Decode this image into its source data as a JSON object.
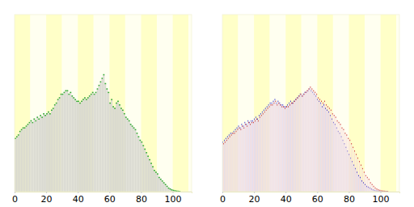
{
  "chart_data": [
    {
      "type": "bar",
      "x": [
        0,
        1,
        2,
        3,
        4,
        5,
        6,
        7,
        8,
        9,
        10,
        11,
        12,
        13,
        14,
        15,
        16,
        17,
        18,
        19,
        20,
        21,
        22,
        23,
        24,
        25,
        26,
        27,
        28,
        29,
        30,
        31,
        32,
        33,
        34,
        35,
        36,
        37,
        38,
        39,
        40,
        41,
        42,
        43,
        44,
        45,
        46,
        47,
        48,
        49,
        50,
        51,
        52,
        53,
        54,
        55,
        56,
        57,
        58,
        59,
        60,
        61,
        62,
        63,
        64,
        65,
        66,
        67,
        68,
        69,
        70,
        71,
        72,
        73,
        74,
        75,
        76,
        77,
        78,
        79,
        80,
        81,
        82,
        83,
        84,
        85,
        86,
        87,
        88,
        89,
        90,
        91,
        92,
        93,
        94,
        95,
        96,
        97,
        98,
        99,
        100,
        101,
        102,
        103,
        104
      ],
      "series": [
        {
          "color": "#33aa33",
          "values": [
            30,
            31,
            32,
            34,
            35,
            36,
            36,
            37,
            38,
            39,
            40,
            39,
            41,
            40,
            42,
            41,
            43,
            42,
            44,
            43,
            44,
            45,
            44,
            46,
            47,
            49,
            50,
            52,
            53,
            55,
            55,
            56,
            57,
            57,
            55,
            56,
            54,
            53,
            52,
            51,
            51,
            50,
            51,
            52,
            53,
            52,
            53,
            54,
            55,
            56,
            55,
            56,
            58,
            60,
            62,
            64,
            66,
            61,
            58,
            56,
            50,
            52,
            48,
            47,
            50,
            51,
            49,
            47,
            46,
            44,
            42,
            41,
            40,
            38,
            37,
            36,
            35,
            33,
            31,
            29,
            28,
            26,
            24,
            22,
            20,
            18,
            16,
            14,
            12,
            11,
            10,
            8,
            7,
            6,
            5,
            4,
            3,
            2,
            1.5,
            1,
            0.7,
            0.5,
            0.3,
            0.2,
            0.1
          ]
        }
      ],
      "xlim": [
        0,
        112
      ],
      "xticks": [
        0,
        20,
        40,
        60,
        80,
        100
      ],
      "ylim": [
        0,
        100
      ],
      "tick_labels": "x"
    },
    {
      "type": "bar",
      "x": [
        0,
        1,
        2,
        3,
        4,
        5,
        6,
        7,
        8,
        9,
        10,
        11,
        12,
        13,
        14,
        15,
        16,
        17,
        18,
        19,
        20,
        21,
        22,
        23,
        24,
        25,
        26,
        27,
        28,
        29,
        30,
        31,
        32,
        33,
        34,
        35,
        36,
        37,
        38,
        39,
        40,
        41,
        42,
        43,
        44,
        45,
        46,
        47,
        48,
        49,
        50,
        51,
        52,
        53,
        54,
        55,
        56,
        57,
        58,
        59,
        60,
        61,
        62,
        63,
        64,
        65,
        66,
        67,
        68,
        69,
        70,
        71,
        72,
        73,
        74,
        75,
        76,
        77,
        78,
        79,
        80,
        81,
        82,
        83,
        84,
        85,
        86,
        87,
        88,
        89,
        90,
        91,
        92,
        93,
        94,
        95,
        96,
        97,
        98,
        99,
        100,
        101,
        102,
        103,
        104
      ],
      "series": [
        {
          "color": "#3333cc",
          "values": [
            28,
            29,
            30,
            31,
            32,
            33,
            33,
            34,
            35,
            36,
            37,
            36,
            38,
            37,
            39,
            38,
            40,
            39,
            40,
            40,
            41,
            42,
            41,
            43,
            44,
            45,
            46,
            47,
            48,
            49,
            50,
            50,
            51,
            52,
            50,
            51,
            50,
            49,
            49,
            48,
            48,
            49,
            50,
            51,
            50,
            51,
            52,
            53,
            54,
            55,
            54,
            55,
            56,
            56,
            57,
            58,
            57,
            56,
            55,
            54,
            52,
            51,
            50,
            48,
            49,
            47,
            46,
            45,
            43,
            41,
            39,
            38,
            36,
            34,
            33,
            31,
            29,
            27,
            25,
            23,
            21,
            19,
            17,
            15,
            13,
            11,
            9,
            8,
            6,
            5,
            4,
            3,
            2.5,
            2,
            1.5,
            1,
            0.7,
            0.5,
            0.3,
            0.2,
            0.1,
            0.1,
            0,
            0,
            0
          ]
        },
        {
          "color": "#cc3333",
          "values": [
            27,
            28,
            29,
            30,
            31,
            32,
            33,
            33,
            34,
            35,
            36,
            35,
            37,
            36,
            38,
            37,
            39,
            38,
            39,
            39,
            40,
            41,
            40,
            42,
            43,
            44,
            45,
            46,
            47,
            48,
            49,
            49,
            50,
            51,
            49,
            50,
            49,
            48,
            48,
            47,
            48,
            48,
            49,
            50,
            50,
            51,
            52,
            53,
            54,
            55,
            54,
            55,
            56,
            57,
            58,
            59,
            58,
            57,
            56,
            55,
            53,
            52,
            51,
            50,
            51,
            49,
            48,
            47,
            46,
            44,
            43,
            42,
            40,
            39,
            38,
            36,
            35,
            33,
            32,
            30,
            29,
            27,
            25,
            23,
            21,
            19,
            17,
            15,
            13,
            11,
            9,
            8,
            7,
            5,
            4,
            3,
            2,
            1.5,
            1,
            0.7,
            0.5,
            0.3,
            0.2,
            0.1,
            0.1
          ]
        }
      ],
      "xlim": [
        0,
        112
      ],
      "xticks": [
        0,
        20,
        40,
        60,
        80,
        100
      ],
      "ylim": [
        0,
        100
      ],
      "tick_labels": "x"
    }
  ]
}
